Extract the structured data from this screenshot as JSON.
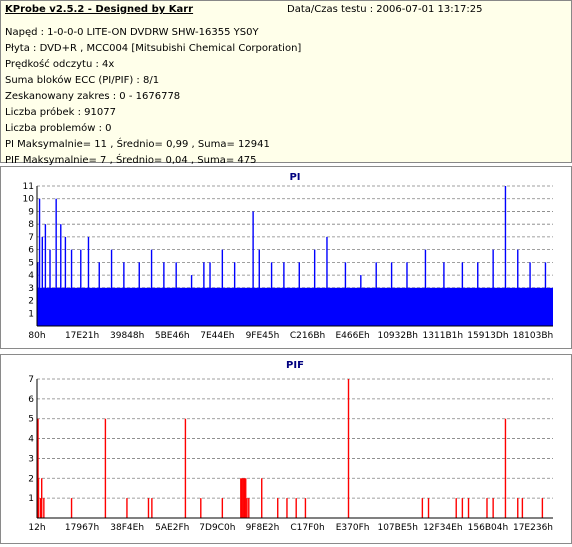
{
  "header": {
    "title": "KProbe v2.5.2 - Designed by Karr",
    "date_label": "Data/Czas testu : 2006-07-01 13:17:25",
    "lines": [
      "Napęd : 1-0-0-0 LITE-ON DVDRW SHW-16355  YS0Y",
      "Płyta : DVD+R , MCC004 [Mitsubishi Chemical Corporation]",
      "Prędkość odczytu : 4x",
      "Suma bloków ECC (PI/PIF) : 8/1",
      "Zeskanowany zakres : 0 - 1676778",
      "Liczba próbek : 91077",
      "Liczba problemów : 0",
      "PI Maksymalnie= 11 , Średnio= 0,99 , Suma= 12941",
      "PIF Maksymalnie= 7 , Średnio= 0,04 , Suma= 475"
    ]
  },
  "colors": {
    "pi": "#0000FF",
    "pif": "#FF0000",
    "axis": "#000000",
    "grid": "#808080",
    "header_bg": "#FFFFEA"
  },
  "chart_data": [
    {
      "type": "bar",
      "title": "PI",
      "ylim": [
        0,
        11
      ],
      "yticks": [
        1,
        2,
        3,
        4,
        5,
        6,
        7,
        8,
        9,
        10,
        11
      ],
      "xticks": [
        "80h",
        "17E21h",
        "39848h",
        "5BE46h",
        "7E44Eh",
        "9FE45h",
        "C216Bh",
        "E466Eh",
        "10932Bh",
        "1311B1h",
        "15913Dh",
        "18103Bh"
      ],
      "grid": true,
      "x_range": [
        0,
        1676778
      ],
      "baseline": 3,
      "peaks": [
        [
          0,
          5
        ],
        [
          6000,
          10
        ],
        [
          15000,
          7
        ],
        [
          25000,
          8
        ],
        [
          40000,
          6
        ],
        [
          60000,
          10
        ],
        [
          75000,
          8
        ],
        [
          90000,
          7
        ],
        [
          110000,
          6
        ],
        [
          140000,
          6
        ],
        [
          165000,
          7
        ],
        [
          200000,
          5
        ],
        [
          240000,
          6
        ],
        [
          280000,
          5
        ],
        [
          330000,
          5
        ],
        [
          370000,
          6
        ],
        [
          410000,
          5
        ],
        [
          450000,
          5
        ],
        [
          500000,
          4
        ],
        [
          540000,
          5
        ],
        [
          560000,
          5
        ],
        [
          600000,
          6
        ],
        [
          640000,
          5
        ],
        [
          700000,
          9
        ],
        [
          720000,
          6
        ],
        [
          760000,
          5
        ],
        [
          800000,
          5
        ],
        [
          850000,
          5
        ],
        [
          900000,
          6
        ],
        [
          940000,
          7
        ],
        [
          1000000,
          5
        ],
        [
          1050000,
          4
        ],
        [
          1100000,
          5
        ],
        [
          1150000,
          5
        ],
        [
          1200000,
          5
        ],
        [
          1260000,
          6
        ],
        [
          1320000,
          5
        ],
        [
          1380000,
          5
        ],
        [
          1430000,
          5
        ],
        [
          1480000,
          6
        ],
        [
          1520000,
          11
        ],
        [
          1560000,
          6
        ],
        [
          1600000,
          5
        ],
        [
          1650000,
          5
        ]
      ]
    },
    {
      "type": "bar",
      "title": "PIF",
      "ylim": [
        0,
        7
      ],
      "yticks": [
        1,
        2,
        3,
        4,
        5,
        6,
        7
      ],
      "xticks": [
        "12h",
        "17967h",
        "38F4Eh",
        "5AE2Fh",
        "7D9C0h",
        "9F8E2h",
        "C17F0h",
        "E370Fh",
        "107BE5h",
        "12F34Eh",
        "156B04h",
        "17E236h"
      ],
      "grid": true,
      "x_range": [
        0,
        1676778
      ],
      "bars": [
        [
          1000,
          5
        ],
        [
          2500,
          2
        ],
        [
          9000,
          1
        ],
        [
          13000,
          2
        ],
        [
          20000,
          1
        ],
        [
          110000,
          1
        ],
        [
          220000,
          5
        ],
        [
          290000,
          1
        ],
        [
          360000,
          1
        ],
        [
          371000,
          1
        ],
        [
          480000,
          5
        ],
        [
          530000,
          1
        ],
        [
          600000,
          1
        ],
        [
          660000,
          2
        ],
        [
          664000,
          2
        ],
        [
          668000,
          2
        ],
        [
          672000,
          2
        ],
        [
          676000,
          2
        ],
        [
          680000,
          1
        ],
        [
          686000,
          1
        ],
        [
          728000,
          2
        ],
        [
          780000,
          1
        ],
        [
          810000,
          1
        ],
        [
          840000,
          1
        ],
        [
          870000,
          1
        ],
        [
          1010000,
          7
        ],
        [
          1250000,
          1
        ],
        [
          1270000,
          1
        ],
        [
          1360000,
          1
        ],
        [
          1380000,
          1
        ],
        [
          1400000,
          1
        ],
        [
          1460000,
          1
        ],
        [
          1480000,
          1
        ],
        [
          1520000,
          5
        ],
        [
          1560000,
          1
        ],
        [
          1575000,
          1
        ],
        [
          1640000,
          1
        ]
      ]
    }
  ]
}
